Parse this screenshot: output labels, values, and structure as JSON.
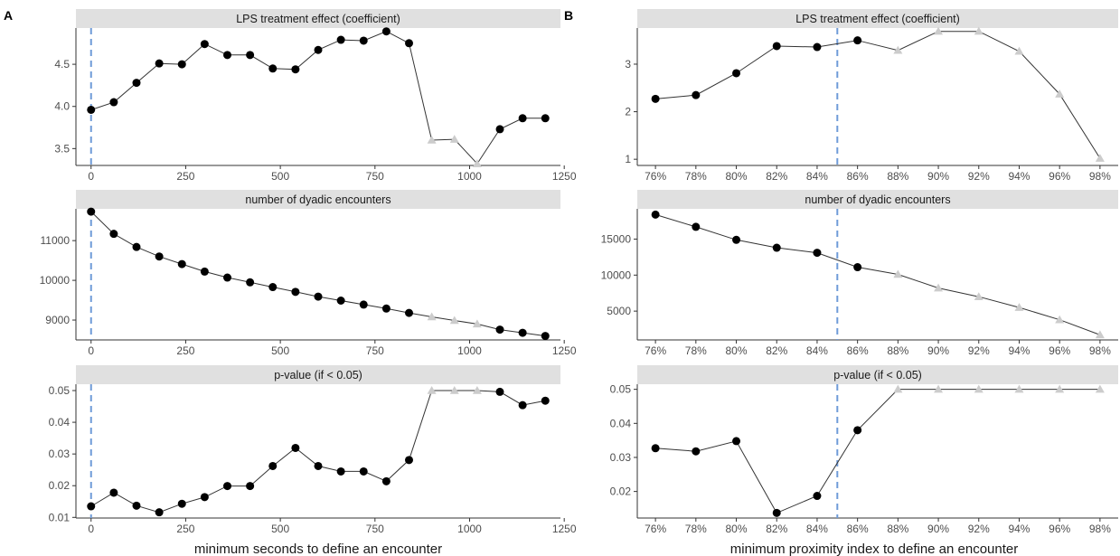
{
  "figure": {
    "colors": {
      "significant": "#000000",
      "nonsignificant": "#cccccc",
      "line": "#333333",
      "threshold": "#6f9bd8",
      "strip": "#e0e0e0"
    },
    "panels": [
      {
        "tag": "A",
        "xlabel": "minimum seconds to define an encounter"
      },
      {
        "tag": "B",
        "xlabel": "minimum proximity index to define an encounter"
      }
    ]
  },
  "chart_data": [
    {
      "type": "line",
      "panel": "A",
      "title": "LPS treatment effect (coefficient)",
      "x": [
        0,
        60,
        120,
        180,
        240,
        300,
        360,
        420,
        480,
        540,
        600,
        660,
        720,
        780,
        840,
        900,
        960,
        1020,
        1080,
        1140,
        1200
      ],
      "values": [
        3.96,
        4.05,
        4.28,
        4.51,
        4.5,
        4.74,
        4.61,
        4.61,
        4.45,
        4.44,
        4.67,
        4.79,
        4.78,
        4.89,
        4.75,
        3.6,
        3.61,
        3.32,
        3.73,
        3.86,
        3.86
      ],
      "significant": [
        true,
        true,
        true,
        true,
        true,
        true,
        true,
        true,
        true,
        true,
        true,
        true,
        true,
        true,
        true,
        false,
        false,
        false,
        true,
        true,
        true
      ],
      "xlim": [
        -40,
        1240
      ],
      "ylim": [
        3.3,
        4.93
      ],
      "xticks": [
        0,
        250,
        500,
        750,
        1000,
        1250
      ],
      "xtick_labels": [
        "0",
        "250",
        "500",
        "750",
        "1000",
        "1250"
      ],
      "yticks": [
        3.5,
        4.0,
        4.5
      ],
      "ytick_labels": [
        "3.5",
        "4.0",
        "4.5"
      ],
      "threshold_x": 0
    },
    {
      "type": "line",
      "panel": "A",
      "title": "number of dyadic encounters",
      "x": [
        0,
        60,
        120,
        180,
        240,
        300,
        360,
        420,
        480,
        540,
        600,
        660,
        720,
        780,
        840,
        900,
        960,
        1020,
        1080,
        1140,
        1200
      ],
      "values": [
        11730,
        11170,
        10840,
        10600,
        10410,
        10220,
        10070,
        9950,
        9830,
        9710,
        9590,
        9490,
        9390,
        9290,
        9180,
        9080,
        8990,
        8900,
        8760,
        8680,
        8600
      ],
      "significant": [
        true,
        true,
        true,
        true,
        true,
        true,
        true,
        true,
        true,
        true,
        true,
        true,
        true,
        true,
        true,
        false,
        false,
        false,
        true,
        true,
        true
      ],
      "xlim": [
        -40,
        1240
      ],
      "ylim": [
        8500,
        11800
      ],
      "xticks": [
        0,
        250,
        500,
        750,
        1000,
        1250
      ],
      "xtick_labels": [
        "0",
        "250",
        "500",
        "750",
        "1000",
        "1250"
      ],
      "yticks": [
        9000,
        10000,
        11000
      ],
      "ytick_labels": [
        "9000",
        "10000",
        "11000"
      ],
      "threshold_x": 0
    },
    {
      "type": "line",
      "panel": "A",
      "title": "p-value (if < 0.05)",
      "x": [
        0,
        60,
        120,
        180,
        240,
        300,
        360,
        420,
        480,
        540,
        600,
        660,
        720,
        780,
        840,
        900,
        960,
        1020,
        1080,
        1140,
        1200
      ],
      "values": [
        0.0135,
        0.0178,
        0.0137,
        0.0116,
        0.0143,
        0.0164,
        0.0199,
        0.0199,
        0.0262,
        0.0319,
        0.0262,
        0.0245,
        0.0245,
        0.0214,
        0.0281,
        0.05,
        0.05,
        0.05,
        0.0496,
        0.0454,
        0.0468
      ],
      "significant": [
        true,
        true,
        true,
        true,
        true,
        true,
        true,
        true,
        true,
        true,
        true,
        true,
        true,
        true,
        true,
        false,
        false,
        false,
        true,
        true,
        true
      ],
      "xlim": [
        -40,
        1240
      ],
      "ylim": [
        0.0098,
        0.052
      ],
      "xticks": [
        0,
        250,
        500,
        750,
        1000,
        1250
      ],
      "xtick_labels": [
        "0",
        "250",
        "500",
        "750",
        "1000",
        "1250"
      ],
      "yticks": [
        0.01,
        0.02,
        0.03,
        0.04,
        0.05
      ],
      "ytick_labels": [
        "0.01",
        "0.02",
        "0.03",
        "0.04",
        "0.05"
      ],
      "threshold_x": 0
    },
    {
      "type": "line",
      "panel": "B",
      "title": "LPS treatment effect (coefficient)",
      "x": [
        76,
        78,
        80,
        82,
        84,
        86,
        88,
        90,
        92,
        94,
        96,
        98
      ],
      "values": [
        2.27,
        2.35,
        2.81,
        3.38,
        3.36,
        3.5,
        3.29,
        3.69,
        3.69,
        3.27,
        2.37,
        1.02
      ],
      "significant": [
        true,
        true,
        true,
        true,
        true,
        true,
        false,
        false,
        false,
        false,
        false,
        false
      ],
      "xlim": [
        75.1,
        98.9
      ],
      "ylim": [
        0.87,
        3.76
      ],
      "xticks": [
        76,
        78,
        80,
        82,
        84,
        86,
        88,
        90,
        92,
        94,
        96,
        98
      ],
      "xtick_labels": [
        "76%",
        "78%",
        "80%",
        "82%",
        "84%",
        "86%",
        "88%",
        "90%",
        "92%",
        "94%",
        "96%",
        "98%"
      ],
      "yticks": [
        1,
        2,
        3
      ],
      "ytick_labels": [
        "1",
        "2",
        "3"
      ],
      "threshold_x": 85
    },
    {
      "type": "line",
      "panel": "B",
      "title": "number of dyadic encounters",
      "x": [
        76,
        78,
        80,
        82,
        84,
        86,
        88,
        90,
        92,
        94,
        96,
        98
      ],
      "values": [
        18400,
        16700,
        14900,
        13800,
        13100,
        11100,
        10100,
        8200,
        7000,
        5500,
        3800,
        1700
      ],
      "significant": [
        true,
        true,
        true,
        true,
        true,
        true,
        false,
        false,
        false,
        false,
        false,
        false
      ],
      "xlim": [
        75.1,
        98.9
      ],
      "ylim": [
        1000,
        19200
      ],
      "xticks": [
        76,
        78,
        80,
        82,
        84,
        86,
        88,
        90,
        92,
        94,
        96,
        98
      ],
      "xtick_labels": [
        "76%",
        "78%",
        "80%",
        "82%",
        "84%",
        "86%",
        "88%",
        "90%",
        "92%",
        "94%",
        "96%",
        "98%"
      ],
      "yticks": [
        5000,
        10000,
        15000
      ],
      "ytick_labels": [
        "5000",
        "10000",
        "15000"
      ],
      "threshold_x": 85
    },
    {
      "type": "line",
      "panel": "B",
      "title": "p-value (if < 0.05)",
      "x": [
        76,
        78,
        80,
        82,
        84,
        86,
        88,
        90,
        92,
        94,
        96,
        98
      ],
      "values": [
        0.0327,
        0.0318,
        0.0348,
        0.0137,
        0.0187,
        0.038,
        0.05,
        0.05,
        0.05,
        0.05,
        0.05,
        0.05
      ],
      "significant": [
        true,
        true,
        true,
        true,
        true,
        true,
        false,
        false,
        false,
        false,
        false,
        false
      ],
      "xlim": [
        75.1,
        98.9
      ],
      "ylim": [
        0.0122,
        0.0515
      ],
      "xticks": [
        76,
        78,
        80,
        82,
        84,
        86,
        88,
        90,
        92,
        94,
        96,
        98
      ],
      "xtick_labels": [
        "76%",
        "78%",
        "80%",
        "82%",
        "84%",
        "86%",
        "88%",
        "90%",
        "92%",
        "94%",
        "96%",
        "98%"
      ],
      "yticks": [
        0.02,
        0.03,
        0.04,
        0.05
      ],
      "ytick_labels": [
        "0.02",
        "0.03",
        "0.04",
        "0.05"
      ],
      "threshold_x": 85
    }
  ]
}
